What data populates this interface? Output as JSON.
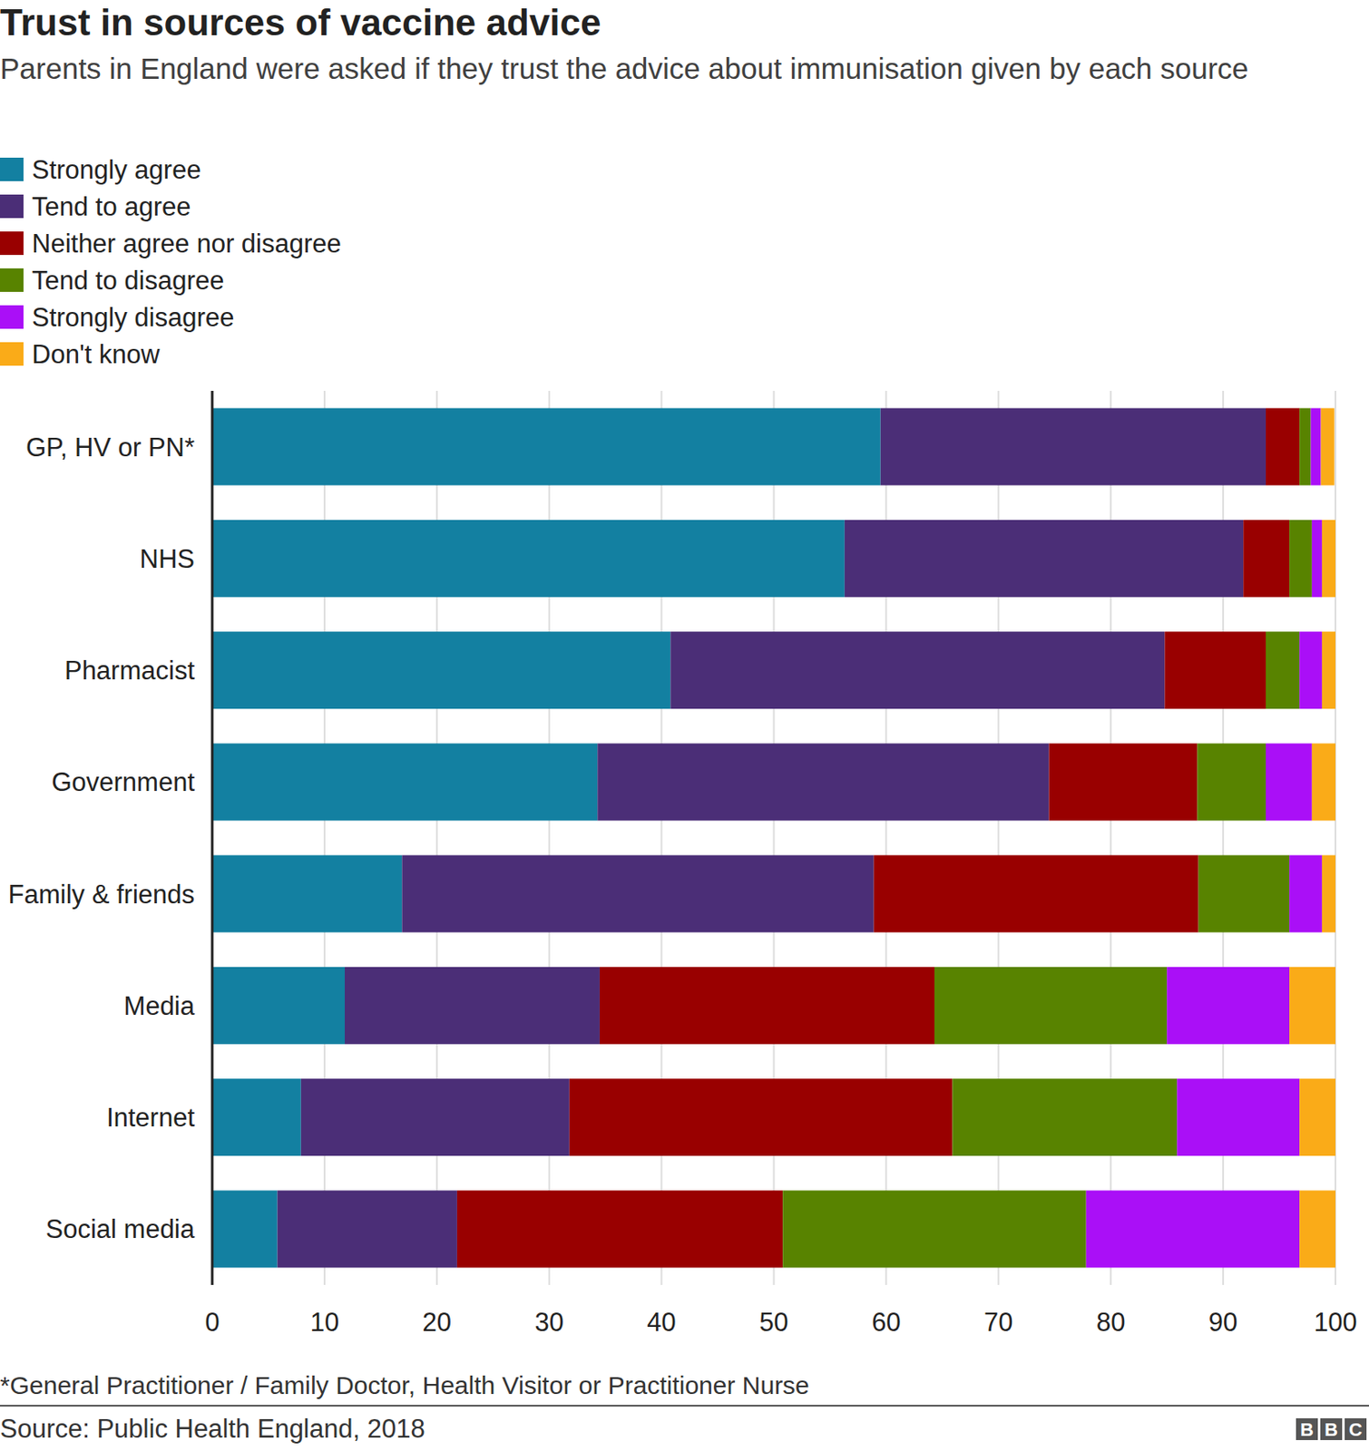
{
  "chart_data": {
    "type": "bar",
    "orientation": "horizontal",
    "stacked": true,
    "grid": true,
    "legend": "top-left",
    "title": "Trust in sources of vaccine advice",
    "subtitle": "Parents in England were asked if they trust the advice about immunisation given by each source",
    "footnote": "*General Practitioner / Family Doctor, Health Visitor or Practitioner Nurse",
    "source": "Source: Public Health England, 2018",
    "logo": "BBC",
    "categories": [
      "GP, HV or PN*",
      "NHS",
      "Pharmacist",
      "Government",
      "Family & friends",
      "Media",
      "Internet",
      "Social media"
    ],
    "series": [
      {
        "name": "Strongly agree",
        "color": "#1380a1",
        "values": [
          59.5,
          56.3,
          40.8,
          34.3,
          16.9,
          11.8,
          7.9,
          5.8
        ]
      },
      {
        "name": "Tend to agree",
        "color": "#4b2e77",
        "values": [
          34.3,
          35.5,
          44,
          40.2,
          42,
          22.7,
          23.9,
          16
        ]
      },
      {
        "name": "Neither agree nor disagree",
        "color": "#990000",
        "values": [
          3,
          4.1,
          9,
          13.2,
          28.9,
          29.8,
          34.1,
          29
        ]
      },
      {
        "name": "Tend to disagree",
        "color": "#588300",
        "values": [
          1,
          2,
          3,
          6.1,
          8.1,
          20.7,
          20,
          27
        ]
      },
      {
        "name": "Strongly disagree",
        "color": "#aa0ff7",
        "values": [
          0.9,
          0.9,
          2,
          4.1,
          2.9,
          10.9,
          10.9,
          19
        ]
      },
      {
        "name": "Don't know",
        "color": "#faab18",
        "values": [
          1.2,
          1.2,
          1.2,
          2.1,
          1.2,
          4.1,
          3.2,
          3.2
        ]
      }
    ],
    "xlim": [
      0,
      100
    ],
    "xticks": [
      0,
      10,
      20,
      30,
      40,
      50,
      60,
      70,
      80,
      90,
      100
    ]
  }
}
